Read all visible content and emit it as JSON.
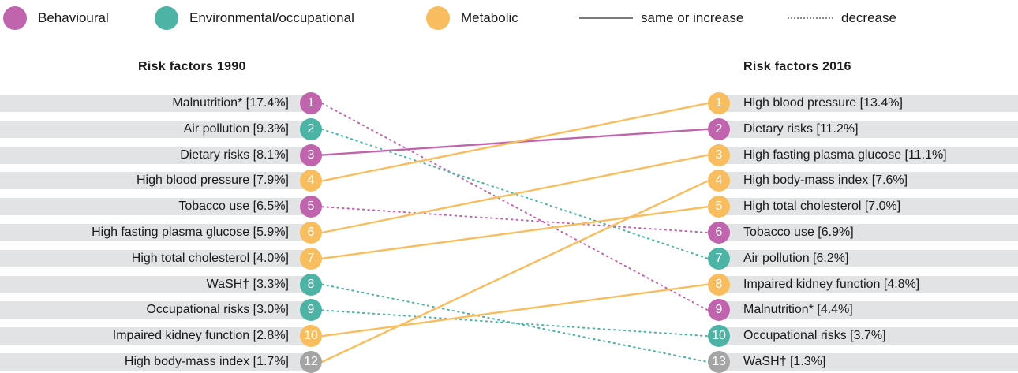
{
  "colors": {
    "behavioural": "#c065ad",
    "environmental": "#4db3a5",
    "metabolic": "#f8bd5e",
    "other": "#a5a5a5",
    "row_background": "#e2e3e5"
  },
  "legend": {
    "behavioural": "Behavioural",
    "environmental": "Environmental/occupational",
    "metabolic": "Metabolic",
    "same_or_increase": "same or increase",
    "decrease": "decrease"
  },
  "left": {
    "title": "Risk factors 1990",
    "items": [
      {
        "label": "Malnutrition* [17.4%]",
        "rank": "1",
        "category": "behavioural"
      },
      {
        "label": "Air pollution [9.3%]",
        "rank": "2",
        "category": "environmental"
      },
      {
        "label": "Dietary risks [8.1%]",
        "rank": "3",
        "category": "behavioural"
      },
      {
        "label": "High blood pressure [7.9%]",
        "rank": "4",
        "category": "metabolic"
      },
      {
        "label": "Tobacco use [6.5%]",
        "rank": "5",
        "category": "behavioural"
      },
      {
        "label": "High fasting plasma glucose [5.9%]",
        "rank": "6",
        "category": "metabolic"
      },
      {
        "label": "High total cholesterol [4.0%]",
        "rank": "7",
        "category": "metabolic"
      },
      {
        "label": "WaSH† [3.3%]",
        "rank": "8",
        "category": "environmental"
      },
      {
        "label": "Occupational risks [3.0%]",
        "rank": "9",
        "category": "environmental"
      },
      {
        "label": "Impaired kidney function [2.8%]",
        "rank": "10",
        "category": "metabolic"
      },
      {
        "label": "High body-mass index [1.7%]",
        "rank": "12",
        "category": "other"
      }
    ]
  },
  "right": {
    "title": "Risk factors 2016",
    "items": [
      {
        "label": "High blood pressure [13.4%]",
        "rank": "1",
        "category": "metabolic"
      },
      {
        "label": "Dietary risks [11.2%]",
        "rank": "2",
        "category": "behavioural"
      },
      {
        "label": "High fasting plasma glucose [11.1%]",
        "rank": "3",
        "category": "metabolic"
      },
      {
        "label": "High body-mass index [7.6%]",
        "rank": "4",
        "category": "metabolic"
      },
      {
        "label": "High total cholesterol [7.0%]",
        "rank": "5",
        "category": "metabolic"
      },
      {
        "label": "Tobacco use [6.9%]",
        "rank": "6",
        "category": "behavioural"
      },
      {
        "label": "Air pollution [6.2%]",
        "rank": "7",
        "category": "environmental"
      },
      {
        "label": "Impaired kidney function [4.8%]",
        "rank": "8",
        "category": "metabolic"
      },
      {
        "label": "Malnutrition* [4.4%]",
        "rank": "9",
        "category": "behavioural"
      },
      {
        "label": "Occupational risks [3.7%]",
        "rank": "10",
        "category": "environmental"
      },
      {
        "label": "WaSH† [1.3%]",
        "rank": "13",
        "category": "other"
      }
    ]
  },
  "links": [
    {
      "from": 1,
      "to": 9,
      "style": "decrease",
      "category": "behavioural"
    },
    {
      "from": 2,
      "to": 7,
      "style": "decrease",
      "category": "environmental"
    },
    {
      "from": 3,
      "to": 2,
      "style": "same_or_increase",
      "category": "behavioural"
    },
    {
      "from": 4,
      "to": 1,
      "style": "same_or_increase",
      "category": "metabolic"
    },
    {
      "from": 5,
      "to": 6,
      "style": "decrease",
      "category": "behavioural"
    },
    {
      "from": 6,
      "to": 3,
      "style": "same_or_increase",
      "category": "metabolic"
    },
    {
      "from": 7,
      "to": 5,
      "style": "same_or_increase",
      "category": "metabolic"
    },
    {
      "from": 8,
      "to": 11,
      "style": "decrease",
      "category": "environmental"
    },
    {
      "from": 9,
      "to": 10,
      "style": "decrease",
      "category": "environmental"
    },
    {
      "from": 10,
      "to": 8,
      "style": "same_or_increase",
      "category": "metabolic"
    },
    {
      "from": 11,
      "to": 4,
      "style": "same_or_increase",
      "category": "metabolic"
    }
  ]
}
